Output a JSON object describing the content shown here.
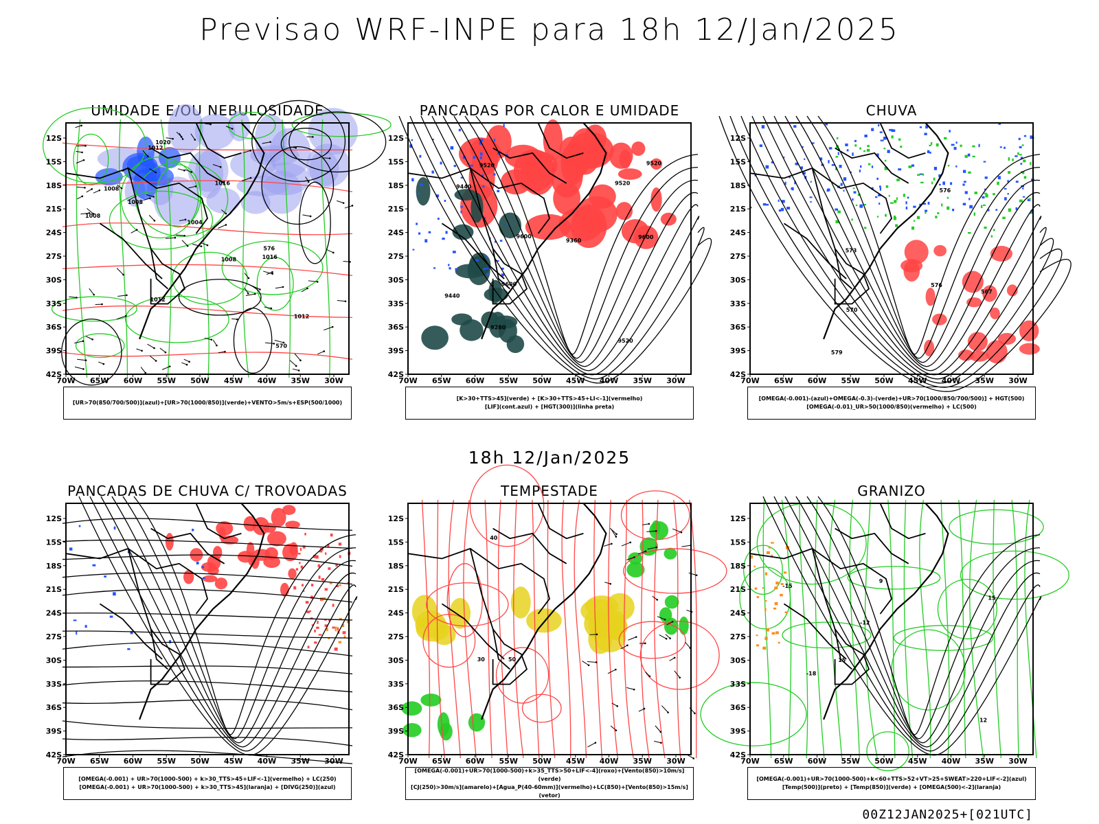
{
  "title": "Previsao WRF-INPE  para 18h 12/Jan/2025",
  "subtitle_date": "18h 12/Jan/2025",
  "footer_code": "00Z12JAN2025+[021UTC]",
  "axes": {
    "lat_labels": [
      "12S",
      "15S",
      "18S",
      "21S",
      "24S",
      "27S",
      "30S",
      "33S",
      "36S",
      "39S",
      "42S"
    ],
    "lon_labels": [
      "70W",
      "65W",
      "60W",
      "55W",
      "50W",
      "45W",
      "40W",
      "35W",
      "30W"
    ]
  },
  "colors": {
    "green": "#22cc22",
    "red": "#ff4444",
    "blue": "#2255ff",
    "lavender": "#9aa0ee",
    "darkteal": "#1f4a48",
    "yellow": "#e6d21e",
    "orange": "#ff8c1a"
  },
  "panels": [
    {
      "title": "UMIDADE E/OU NEBULOSIDADE",
      "legend": [
        "[UR>70(850/700/500)](azul)+[UR>70(1000/850)](verde)+VENTO>5m/s+ESP(500/1000)"
      ],
      "contour_labels": [
        "1008",
        "1008",
        "1004",
        "1012",
        "1012",
        "1016",
        "1008",
        "1008",
        "1012",
        "1016",
        "1020",
        "576",
        "570"
      ]
    },
    {
      "title": "PANCADAS POR CALOR E UMIDADE",
      "legend": [
        "[K>30+TTS>45](verde) + [K>30+TTS>45+LI<-1](vermelho)",
        "[LIF](cont.azul) + [HGT(300)](linha preta)"
      ],
      "contour_labels": [
        "9520",
        "9600",
        "9600",
        "9520",
        "9440",
        "9440",
        "9360",
        "9280",
        "9600",
        "9520",
        "9520"
      ]
    },
    {
      "title": "CHUVA",
      "legend": [
        "[OMEGA(-0.001)-(azul)+OMEGA(-0.3)-(verde)+UR>70(1000/850/700/500)] + HGT(500)",
        "[OMEGA(-0.01)_UR>50(1000/850)(vermelho) + LC(500)"
      ],
      "contour_labels": [
        "579",
        "576",
        "573",
        "570",
        "567",
        "576"
      ]
    },
    {
      "title": "PANCADAS DE CHUVA C/ TROVOADAS",
      "legend": [
        "[OMEGA(-0.001) + UR>70(1000-500) + k>30_TTS>45+LIF<-1](vermelho) + LC(250)",
        "[OMEGA(-0.001) + UR>70(1000-500) + k>30_TTS>45](laranja) + [DIVG(250)](azul)"
      ],
      "contour_labels": []
    },
    {
      "title": "TEMPESTADE",
      "legend": [
        "[OMEGA(-0.001)+UR>70(1000-500)+k>35_TTS>50+LIF<-4](roxo)+[Vento(850)>10m/s](verde)",
        "[CJ(250)>30m/s](amarelo)+[Agua_P(40-60mm)](vermelho)+LC(850)+[Vento(850)>15m/s](vetor)"
      ],
      "contour_labels": [
        "50",
        "40",
        "30"
      ]
    },
    {
      "title": "GRANIZO",
      "legend": [
        "[OMEGA(-0.001)+UR>70(1000-500)+k<60+TTS>52+VT>25+SWEAT>220+LIF<-2](azul)",
        "[Temp(500)](preto) + [Temp(850)](verde) + [OMEGA(500)<-2](laranja)"
      ],
      "contour_labels": [
        "-12",
        "-15",
        "-18",
        "15",
        "15",
        "9",
        "12"
      ]
    }
  ]
}
